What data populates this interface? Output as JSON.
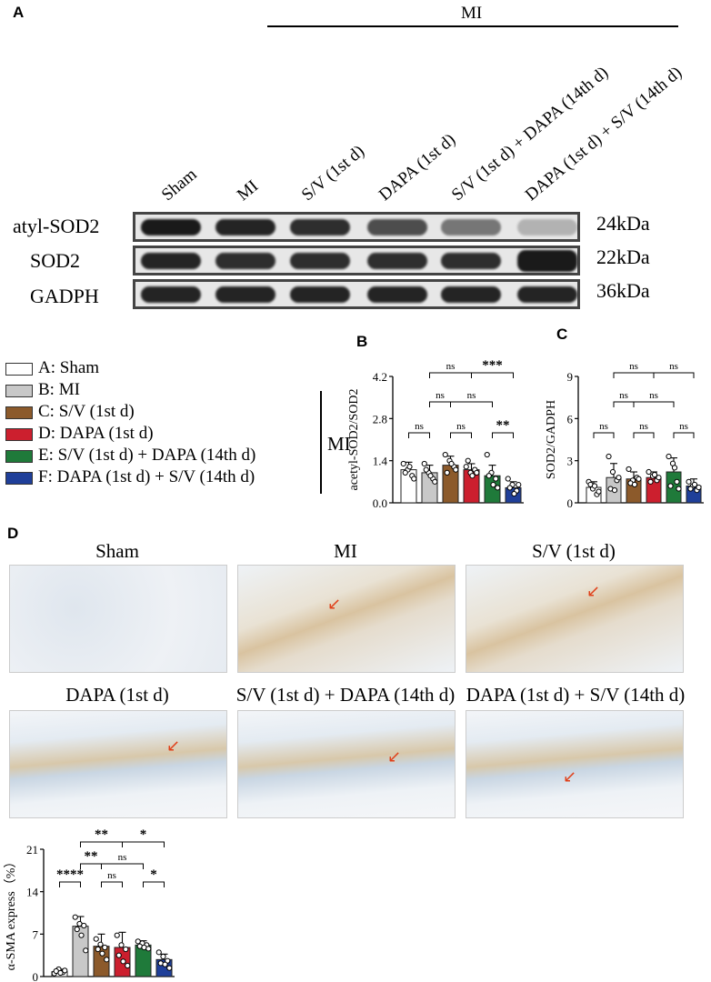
{
  "panels": {
    "a": "A",
    "b": "B",
    "c": "C",
    "d": "D"
  },
  "mi_header": "MI",
  "lanes": [
    "Sham",
    "MI",
    "S/V (1st d)",
    "DAPA (1st d)",
    "S/V (1st d) + DAPA (14th d)",
    "DAPA (1st d) + S/V (14th d)"
  ],
  "blot_rows": [
    {
      "label": "atyl-SOD2",
      "kda": "24kDa",
      "intensity": [
        1.0,
        0.95,
        0.9,
        0.75,
        0.55,
        0.25
      ]
    },
    {
      "label": "SOD2",
      "kda": "22kDa",
      "intensity": [
        0.95,
        0.9,
        0.9,
        0.9,
        0.9,
        1.0
      ]
    },
    {
      "label": "GADPH",
      "kda": "36kDa",
      "intensity": [
        0.95,
        0.95,
        0.95,
        0.95,
        0.95,
        0.95
      ]
    }
  ],
  "legend": {
    "items": [
      {
        "label": "A: Sham",
        "color": "#ffffff"
      },
      {
        "label": "B: MI",
        "color": "#c8c8c8"
      },
      {
        "label": "C: S/V (1st d)",
        "color": "#8c5a2b"
      },
      {
        "label": "D: DAPA (1st d)",
        "color": "#cc1f2e"
      },
      {
        "label": "E: S/V (1st d) + DAPA (14th d)",
        "color": "#1f7a3a"
      },
      {
        "label": "F: DAPA (1st d) + S/V (14th d)",
        "color": "#1f3f99"
      }
    ],
    "group_label": "MI"
  },
  "histology": {
    "titles": [
      "Sham",
      "MI",
      "S/V (1st d)",
      "DAPA (1st d)",
      "S/V (1st d) + DAPA (14th d)",
      "DAPA (1st d) + S/V (14th d)"
    ]
  },
  "chart_data": [
    {
      "type": "bar",
      "panel": "B",
      "ylabel": "acetyl-SOD2/SOD2",
      "ylim": [
        0,
        4.2
      ],
      "yticks": [
        "0.0",
        "1.4",
        "2.8",
        "4.2"
      ],
      "categories": [
        "A",
        "B",
        "C",
        "D",
        "E",
        "F"
      ],
      "values": [
        1.1,
        1.0,
        1.25,
        1.1,
        0.9,
        0.5
      ],
      "errors": [
        0.25,
        0.25,
        0.3,
        0.2,
        0.35,
        0.2
      ],
      "points": [
        [
          1.3,
          1.1,
          0.9,
          1.0,
          1.2,
          0.8
        ],
        [
          1.3,
          1.0,
          0.8,
          1.1,
          0.9,
          0.7
        ],
        [
          1.6,
          1.4,
          1.2,
          1.0,
          1.3,
          1.1
        ],
        [
          1.2,
          1.0,
          1.1,
          1.4,
          0.9,
          1.0
        ],
        [
          1.6,
          1.0,
          0.8,
          0.9,
          0.6,
          0.5
        ],
        [
          0.8,
          0.6,
          0.4,
          0.5,
          0.3,
          0.6
        ]
      ],
      "comparisons": [
        {
          "from": "A",
          "to": "B",
          "label": "ns",
          "level": 1
        },
        {
          "from": "C",
          "to": "D",
          "label": "ns",
          "level": 1
        },
        {
          "from": "E",
          "to": "F",
          "label": "**",
          "level": 1
        },
        {
          "from": "B",
          "to": "C",
          "label": "ns",
          "level": 2
        },
        {
          "from": "C",
          "to": "E",
          "label": "ns",
          "level": 2
        },
        {
          "from": "B",
          "to": "D",
          "label": "ns",
          "level": 3
        },
        {
          "from": "D",
          "to": "F",
          "label": "***",
          "level": 3
        }
      ]
    },
    {
      "type": "bar",
      "panel": "C",
      "ylabel": "SOD2/GADPH",
      "ylim": [
        0,
        9
      ],
      "yticks": [
        "0",
        "3",
        "6",
        "9"
      ],
      "categories": [
        "A",
        "B",
        "C",
        "D",
        "E",
        "F"
      ],
      "values": [
        1.1,
        1.8,
        1.7,
        1.8,
        2.2,
        1.2
      ],
      "errors": [
        0.4,
        1.0,
        0.5,
        0.4,
        1.0,
        0.5
      ],
      "points": [
        [
          1.5,
          1.0,
          0.6,
          1.3,
          1.2,
          0.8
        ],
        [
          3.3,
          2.2,
          1.6,
          1.0,
          0.9,
          1.8
        ],
        [
          2.4,
          1.6,
          1.8,
          1.4,
          1.3,
          1.7
        ],
        [
          2.2,
          1.9,
          1.6,
          1.5,
          2.0,
          1.8
        ],
        [
          3.3,
          2.8,
          1.5,
          1.2,
          2.5,
          1.0
        ],
        [
          1.5,
          1.2,
          0.9,
          1.0,
          1.3,
          1.1
        ]
      ],
      "comparisons": [
        {
          "from": "A",
          "to": "B",
          "label": "ns",
          "level": 1
        },
        {
          "from": "C",
          "to": "D",
          "label": "ns",
          "level": 1
        },
        {
          "from": "E",
          "to": "F",
          "label": "ns",
          "level": 1
        },
        {
          "from": "B",
          "to": "C",
          "label": "ns",
          "level": 2
        },
        {
          "from": "C",
          "to": "E",
          "label": "ns",
          "level": 2
        },
        {
          "from": "B",
          "to": "D",
          "label": "ns",
          "level": 3
        },
        {
          "from": "D",
          "to": "F",
          "label": "ns",
          "level": 3
        }
      ]
    },
    {
      "type": "bar",
      "panel": "D",
      "ylabel": "α-SMA express（%）",
      "ylim": [
        0,
        21
      ],
      "yticks": [
        "0",
        "7",
        "14",
        "21"
      ],
      "categories": [
        "A",
        "B",
        "C",
        "D",
        "E",
        "F"
      ],
      "values": [
        0.8,
        8.3,
        5.0,
        4.8,
        5.2,
        2.8
      ],
      "errors": [
        0.4,
        1.6,
        2.0,
        2.5,
        0.7,
        0.9
      ],
      "points": [
        [
          0.5,
          1.2,
          0.7,
          0.9,
          0.6,
          1.0
        ],
        [
          9.8,
          8.7,
          8.4,
          7.8,
          6.8,
          4.3
        ],
        [
          6.2,
          5.3,
          4.8,
          4.5,
          3.8,
          2.8
        ],
        [
          6.8,
          5.2,
          4.5,
          3.5,
          2.5,
          1.8
        ],
        [
          5.8,
          5.5,
          5.2,
          5.0,
          4.8,
          4.6
        ],
        [
          4.0,
          3.3,
          2.6,
          2.2,
          2.0,
          1.4
        ]
      ],
      "comparisons": [
        {
          "from": "A",
          "to": "B",
          "label": "****",
          "level": 1
        },
        {
          "from": "C",
          "to": "D",
          "label": "ns",
          "level": 1
        },
        {
          "from": "E",
          "to": "F",
          "label": "*",
          "level": 1
        },
        {
          "from": "B",
          "to": "C",
          "label": "**",
          "level": 2
        },
        {
          "from": "C",
          "to": "E",
          "label": "ns",
          "level": 2
        },
        {
          "from": "B",
          "to": "D",
          "label": "**",
          "level": 3
        },
        {
          "from": "D",
          "to": "F",
          "label": "*",
          "level": 3
        }
      ]
    }
  ]
}
